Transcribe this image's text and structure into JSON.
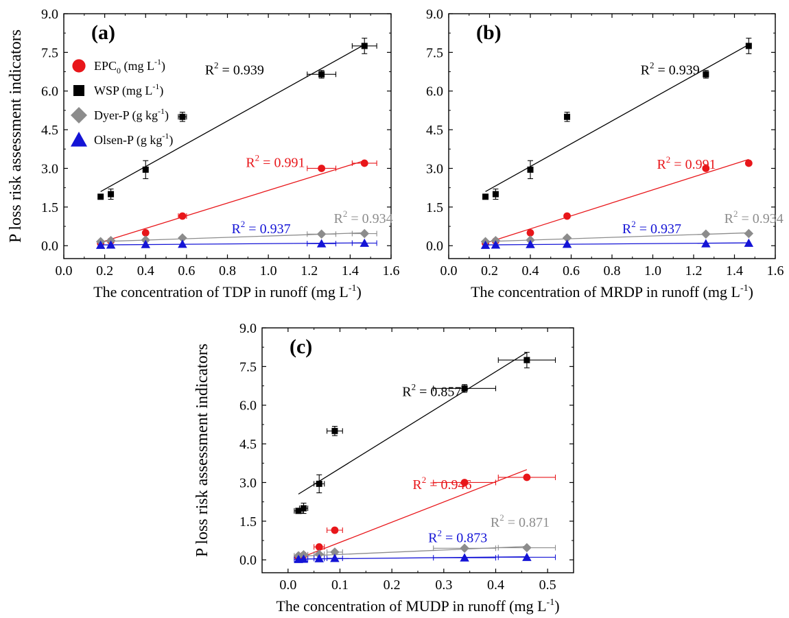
{
  "legend_items": [
    {
      "label": "EPC",
      "sub": "0",
      "unit": " (mg L",
      "sup": "-1",
      "tail": ")",
      "color": "#e8161a",
      "marker": "circle"
    },
    {
      "label": "WSP",
      "sub": "",
      "unit": " (mg L",
      "sup": "-1",
      "tail": ")",
      "color": "#000000",
      "marker": "square"
    },
    {
      "label": "Dyer-P",
      "sub": "",
      "unit": " (g kg",
      "sup": "-1",
      "tail": ")",
      "color": "#8c8c8c",
      "marker": "diamond"
    },
    {
      "label": "Olsen-P",
      "sub": "",
      "unit": " (g kg",
      "sup": "-1",
      "tail": ")",
      "color": "#1414d6",
      "marker": "triangle"
    }
  ],
  "chart_data": [
    {
      "type": "scatter",
      "panel_label": "(a)",
      "ylabel": "P loss risk assessment indicators",
      "xlabel_main": "The concentration of TDP in runoff (mg L",
      "xlabel_sup": "-1",
      "xlabel_tail": ")",
      "xlim": [
        0.0,
        1.6
      ],
      "ylim": [
        -0.5,
        9.0
      ],
      "xticks": [
        "0.0",
        "0.2",
        "0.4",
        "0.6",
        "0.8",
        "1.0",
        "1.2",
        "1.4",
        "1.6"
      ],
      "xtick_values": [
        0.0,
        0.2,
        0.4,
        0.6,
        0.8,
        1.0,
        1.2,
        1.4,
        1.6
      ],
      "yticks": [
        "0.0",
        "1.5",
        "3.0",
        "4.5",
        "6.0",
        "7.5",
        "9.0"
      ],
      "ytick_values": [
        0.0,
        1.5,
        3.0,
        4.5,
        6.0,
        7.5,
        9.0
      ],
      "show_legend": true,
      "series": [
        {
          "name": "EPC0",
          "color": "#e8161a",
          "marker": "circle",
          "x": [
            0.18,
            0.23,
            0.4,
            0.58,
            1.26,
            1.47
          ],
          "y": [
            0.1,
            0.18,
            0.5,
            1.15,
            3.0,
            3.2
          ],
          "xerr": [
            0,
            0,
            0,
            0.02,
            0.07,
            0.06
          ],
          "yerr": [
            0,
            0,
            0,
            0.08,
            0,
            0
          ],
          "fit": [
            0.18,
            0.13,
            1.47,
            3.3
          ],
          "r2": "0.991",
          "r2_pos": [
            0.89,
            3.05
          ]
        },
        {
          "name": "WSP",
          "color": "#000000",
          "marker": "square",
          "x": [
            0.18,
            0.23,
            0.4,
            0.58,
            1.26,
            1.47
          ],
          "y": [
            1.9,
            2.0,
            2.95,
            5.0,
            6.65,
            7.75
          ],
          "xerr": [
            0,
            0,
            0,
            0.02,
            0.07,
            0.06
          ],
          "yerr": [
            0,
            0.2,
            0.35,
            0.18,
            0.15,
            0.3
          ],
          "fit": [
            0.18,
            2.1,
            1.47,
            7.8
          ],
          "r2": "0.939",
          "r2_pos": [
            0.69,
            6.65
          ]
        },
        {
          "name": "Dyer-P",
          "color": "#8c8c8c",
          "marker": "diamond",
          "x": [
            0.18,
            0.23,
            0.4,
            0.58,
            1.26,
            1.47
          ],
          "y": [
            0.16,
            0.2,
            0.22,
            0.3,
            0.45,
            0.47
          ],
          "xerr": [
            0,
            0,
            0,
            0,
            0.07,
            0.06
          ],
          "yerr": [
            0,
            0,
            0,
            0,
            0,
            0
          ],
          "fit": [
            0.18,
            0.16,
            1.47,
            0.5
          ],
          "r2": "0.934",
          "r2_pos": [
            1.32,
            0.88
          ]
        },
        {
          "name": "Olsen-P",
          "color": "#1414d6",
          "marker": "triangle",
          "x": [
            0.18,
            0.23,
            0.4,
            0.58,
            1.26,
            1.47
          ],
          "y": [
            0.02,
            0.03,
            0.05,
            0.06,
            0.08,
            0.1
          ],
          "xerr": [
            0,
            0,
            0,
            0,
            0.07,
            0.06
          ],
          "yerr": [
            0,
            0,
            0,
            0,
            0,
            0
          ],
          "fit": [
            0.18,
            0.03,
            1.47,
            0.11
          ],
          "r2": "0.937",
          "r2_pos": [
            0.82,
            0.48
          ]
        }
      ]
    },
    {
      "type": "scatter",
      "panel_label": "(b)",
      "ylabel": "",
      "xlabel_main": "The concentration of MRDP in runoff (mg L",
      "xlabel_sup": "-1",
      "xlabel_tail": ")",
      "xlim": [
        0.0,
        1.6
      ],
      "ylim": [
        -0.5,
        9.0
      ],
      "xticks": [
        "0.0",
        "0.2",
        "0.4",
        "0.6",
        "0.8",
        "1.0",
        "1.2",
        "1.4",
        "1.6"
      ],
      "xtick_values": [
        0.0,
        0.2,
        0.4,
        0.6,
        0.8,
        1.0,
        1.2,
        1.4,
        1.6
      ],
      "yticks": [
        "0.0",
        "1.5",
        "3.0",
        "4.5",
        "6.0",
        "7.5",
        "9.0"
      ],
      "ytick_values": [
        0.0,
        1.5,
        3.0,
        4.5,
        6.0,
        7.5,
        9.0
      ],
      "show_legend": false,
      "series": [
        {
          "name": "EPC0",
          "color": "#e8161a",
          "marker": "circle",
          "x": [
            0.18,
            0.23,
            0.4,
            0.58,
            1.26,
            1.47
          ],
          "y": [
            0.1,
            0.18,
            0.5,
            1.15,
            3.0,
            3.2
          ],
          "xerr": [
            0,
            0,
            0,
            0,
            0,
            0
          ],
          "yerr": [
            0,
            0,
            0,
            0,
            0,
            0
          ],
          "fit": [
            0.18,
            0.1,
            1.47,
            3.35
          ],
          "r2": "0.991",
          "r2_pos": [
            1.02,
            2.98
          ]
        },
        {
          "name": "WSP",
          "color": "#000000",
          "marker": "square",
          "x": [
            0.18,
            0.23,
            0.4,
            0.58,
            1.26,
            1.47
          ],
          "y": [
            1.9,
            2.0,
            2.95,
            5.0,
            6.65,
            7.75
          ],
          "xerr": [
            0,
            0,
            0,
            0,
            0,
            0
          ],
          "yerr": [
            0,
            0.2,
            0.35,
            0.18,
            0.15,
            0.3
          ],
          "fit": [
            0.18,
            2.1,
            1.47,
            7.8
          ],
          "r2": "0.939",
          "r2_pos": [
            0.94,
            6.65
          ]
        },
        {
          "name": "Dyer-P",
          "color": "#8c8c8c",
          "marker": "diamond",
          "x": [
            0.18,
            0.23,
            0.4,
            0.58,
            1.26,
            1.47
          ],
          "y": [
            0.16,
            0.2,
            0.22,
            0.3,
            0.45,
            0.47
          ],
          "xerr": [
            0,
            0,
            0,
            0,
            0,
            0
          ],
          "yerr": [
            0,
            0,
            0,
            0,
            0,
            0
          ],
          "fit": [
            0.18,
            0.16,
            1.47,
            0.5
          ],
          "r2": "0.934",
          "r2_pos": [
            1.35,
            0.88
          ]
        },
        {
          "name": "Olsen-P",
          "color": "#1414d6",
          "marker": "triangle",
          "x": [
            0.18,
            0.23,
            0.4,
            0.58,
            1.26,
            1.47
          ],
          "y": [
            0.02,
            0.03,
            0.05,
            0.06,
            0.08,
            0.1
          ],
          "xerr": [
            0,
            0,
            0,
            0,
            0,
            0
          ],
          "yerr": [
            0,
            0,
            0,
            0,
            0,
            0
          ],
          "fit": [
            0.18,
            0.03,
            1.47,
            0.11
          ],
          "r2": "0.937",
          "r2_pos": [
            0.85,
            0.48
          ]
        }
      ]
    },
    {
      "type": "scatter",
      "panel_label": "(c)",
      "ylabel": "P loss risk assessment indicators",
      "xlabel_main": "The concentration of MUDP in runoff (mg L",
      "xlabel_sup": "-1",
      "xlabel_tail": ")",
      "xlim": [
        -0.05,
        0.55
      ],
      "ylim": [
        -0.5,
        9.0
      ],
      "xticks": [
        "0.0",
        "0.1",
        "0.2",
        "0.3",
        "0.4",
        "0.5"
      ],
      "xtick_values": [
        0.0,
        0.1,
        0.2,
        0.3,
        0.4,
        0.5
      ],
      "yticks": [
        "0.0",
        "1.5",
        "3.0",
        "4.5",
        "6.0",
        "7.5",
        "9.0"
      ],
      "ytick_values": [
        0.0,
        1.5,
        3.0,
        4.5,
        6.0,
        7.5,
        9.0
      ],
      "show_legend": false,
      "series": [
        {
          "name": "EPC0",
          "color": "#e8161a",
          "marker": "circle",
          "x": [
            0.02,
            0.03,
            0.06,
            0.09,
            0.34,
            0.46
          ],
          "y": [
            0.1,
            0.18,
            0.5,
            1.15,
            3.0,
            3.2
          ],
          "xerr": [
            0.008,
            0.008,
            0.01,
            0.015,
            0.06,
            0.055
          ],
          "yerr": [
            0,
            0,
            0,
            0,
            0,
            0
          ],
          "fit": [
            0.02,
            0.05,
            0.46,
            3.5
          ],
          "r2": "0.946",
          "r2_pos": [
            0.24,
            2.75
          ]
        },
        {
          "name": "WSP",
          "color": "#000000",
          "marker": "square",
          "x": [
            0.02,
            0.03,
            0.06,
            0.09,
            0.34,
            0.46
          ],
          "y": [
            1.9,
            2.0,
            2.95,
            5.0,
            6.65,
            7.75
          ],
          "xerr": [
            0.008,
            0.008,
            0.01,
            0.015,
            0.06,
            0.055
          ],
          "yerr": [
            0,
            0.2,
            0.35,
            0.18,
            0.15,
            0.3
          ],
          "fit": [
            0.02,
            2.55,
            0.46,
            8.05
          ],
          "r2": "0.857",
          "r2_pos": [
            0.22,
            6.35
          ]
        },
        {
          "name": "Dyer-P",
          "color": "#8c8c8c",
          "marker": "diamond",
          "x": [
            0.02,
            0.03,
            0.06,
            0.09,
            0.34,
            0.46
          ],
          "y": [
            0.16,
            0.2,
            0.22,
            0.3,
            0.45,
            0.47
          ],
          "xerr": [
            0.008,
            0.008,
            0.01,
            0.015,
            0.06,
            0.055
          ],
          "yerr": [
            0,
            0,
            0,
            0,
            0,
            0
          ],
          "fit": [
            0.02,
            0.14,
            0.46,
            0.52
          ],
          "r2": "0.871",
          "r2_pos": [
            0.39,
            1.28
          ]
        },
        {
          "name": "Olsen-P",
          "color": "#1414d6",
          "marker": "triangle",
          "x": [
            0.02,
            0.03,
            0.06,
            0.09,
            0.34,
            0.46
          ],
          "y": [
            0.02,
            0.03,
            0.05,
            0.06,
            0.08,
            0.1
          ],
          "xerr": [
            0.008,
            0.008,
            0.01,
            0.015,
            0.06,
            0.055
          ],
          "yerr": [
            0,
            0,
            0,
            0,
            0,
            0
          ],
          "fit": [
            0.02,
            0.03,
            0.46,
            0.12
          ],
          "r2": "0.873",
          "r2_pos": [
            0.27,
            0.68
          ]
        }
      ]
    }
  ]
}
